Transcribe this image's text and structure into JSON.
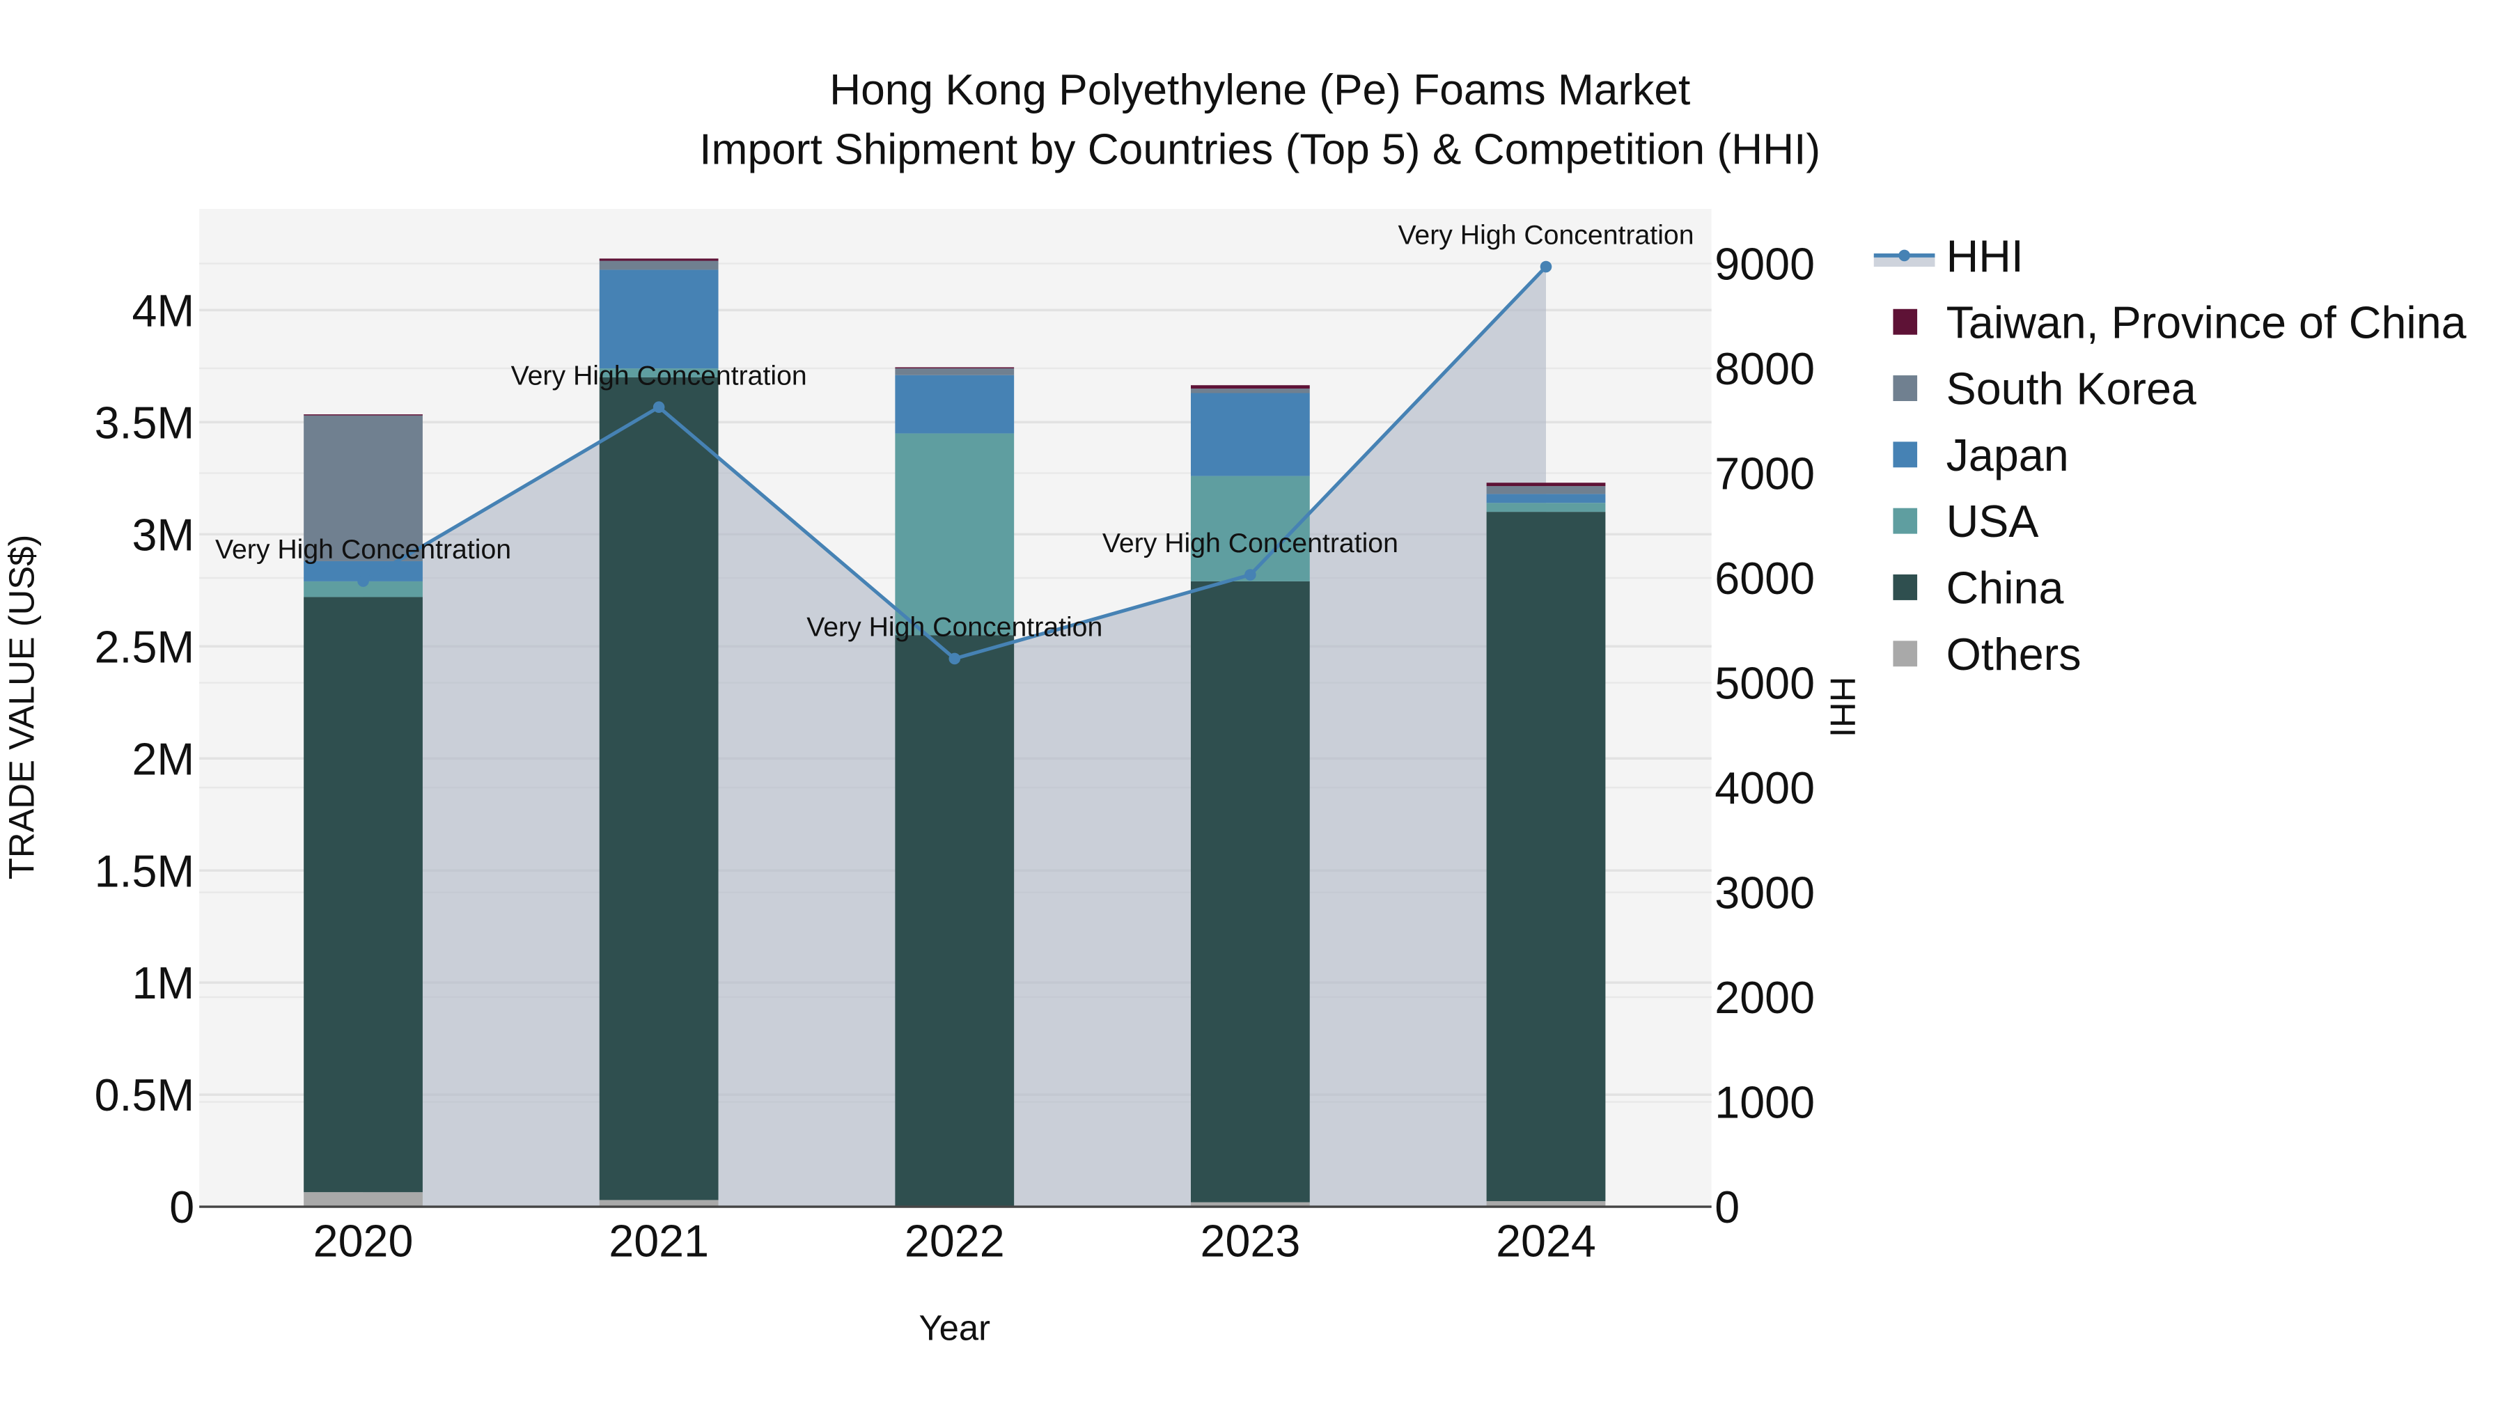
{
  "title": {
    "line1": "Hong Kong Polyethylene (Pe) Foams Market",
    "line2": "Import Shipment by Countries (Top 5) & Competition (HHI)"
  },
  "axes": {
    "x_title": "Year",
    "y_left_title": "TRADE VALUE (US$)",
    "y_right_title": "HHI",
    "x_ticks": [
      "2020",
      "2021",
      "2022",
      "2023",
      "2024"
    ],
    "y_left_ticks": [
      "0",
      "0.5M",
      "1M",
      "1.5M",
      "2M",
      "2.5M",
      "3M",
      "3.5M",
      "4M"
    ],
    "y_right_ticks": [
      "0",
      "1000",
      "2000",
      "3000",
      "4000",
      "5000",
      "6000",
      "7000",
      "8000",
      "9000"
    ]
  },
  "legend": {
    "items": [
      {
        "label": "HHI",
        "type": "line",
        "color": "#4682b4"
      },
      {
        "label": "Taiwan, Province of China",
        "type": "bar",
        "color": "#5e1236"
      },
      {
        "label": "South Korea",
        "type": "bar",
        "color": "#708090"
      },
      {
        "label": "Japan",
        "type": "bar",
        "color": "#4682b4"
      },
      {
        "label": "USA",
        "type": "bar",
        "color": "#5f9ea0"
      },
      {
        "label": "China",
        "type": "bar",
        "color": "#2f4f4f"
      },
      {
        "label": "Others",
        "type": "bar",
        "color": "#a9a9a9"
      }
    ]
  },
  "annotation_text": "Very High Concentration",
  "chart_data": {
    "type": "bar",
    "stacked": true,
    "title": "Hong Kong Polyethylene (Pe) Foams Market\nImport Shipment by Countries (Top 5) & Competition (HHI)",
    "xlabel": "Year",
    "ylabel": "TRADE VALUE (US$)",
    "y2label": "HHI",
    "categories": [
      "2020",
      "2021",
      "2022",
      "2023",
      "2024"
    ],
    "ylim": [
      0,
      4400000
    ],
    "y2lim": [
      0,
      9500
    ],
    "grid": true,
    "legend_position": "right",
    "series": [
      {
        "name": "Others",
        "color": "#a9a9a9",
        "values": [
          65000,
          30000,
          5000,
          20000,
          25000
        ]
      },
      {
        "name": "China",
        "color": "#2f4f4f",
        "values": [
          2655000,
          3670000,
          2545000,
          2770000,
          3075000
        ]
      },
      {
        "name": "USA",
        "color": "#5f9ea0",
        "values": [
          70000,
          40000,
          900000,
          470000,
          40000
        ]
      },
      {
        "name": "Japan",
        "color": "#4682b4",
        "values": [
          90000,
          440000,
          260000,
          370000,
          40000
        ]
      },
      {
        "name": "South Korea",
        "color": "#708090",
        "values": [
          650000,
          40000,
          30000,
          20000,
          35000
        ]
      },
      {
        "name": "Taiwan, Province of China",
        "color": "#5e1236",
        "values": [
          5000,
          10000,
          5000,
          15000,
          15000
        ]
      }
    ],
    "line_series": {
      "name": "HHI",
      "axis": "right",
      "color": "#4682b4",
      "fill": "tozeroy",
      "values": [
        5970,
        7630,
        5230,
        6030,
        8970
      ],
      "annotations": [
        "Very High Concentration",
        "Very High Concentration",
        "Very High Concentration",
        "Very High Concentration",
        "Very High Concentration"
      ]
    }
  }
}
